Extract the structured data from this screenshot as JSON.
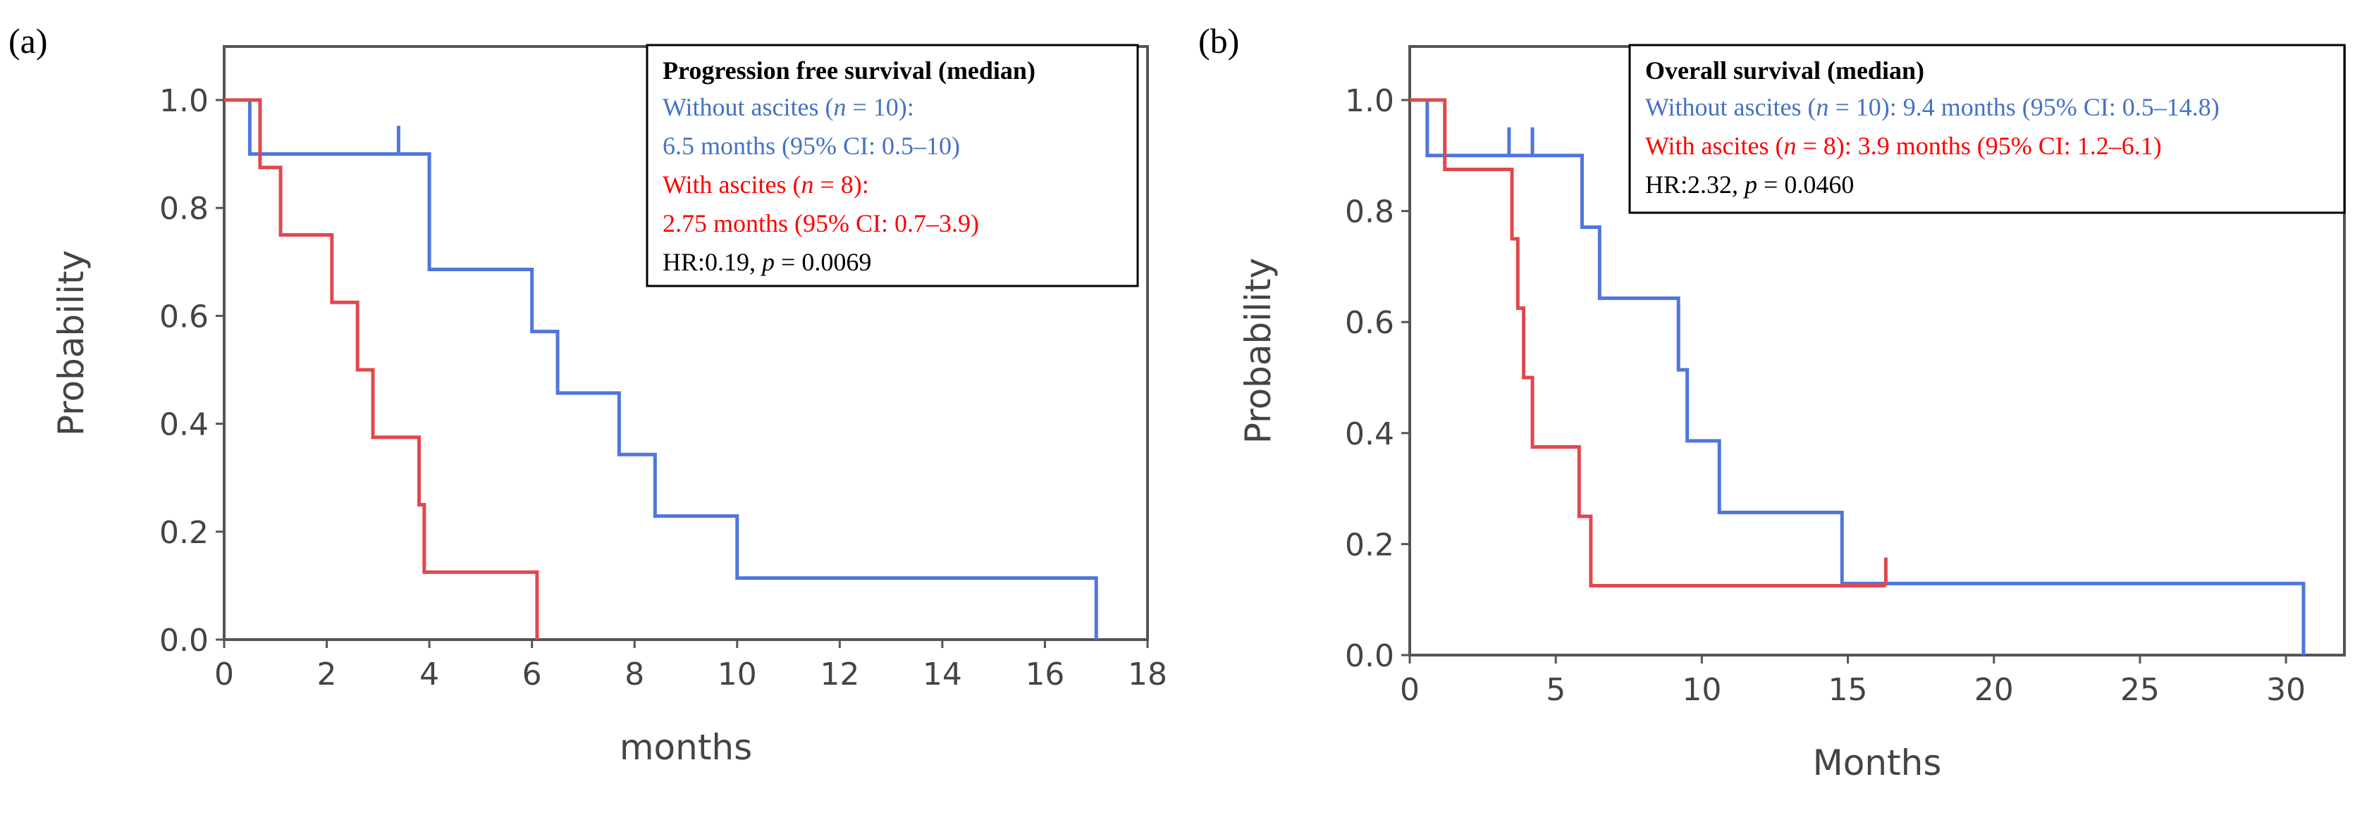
{
  "chart_data": [
    {
      "type": "line",
      "subtype": "kaplan-meier",
      "panel_label": "(a)",
      "title": "Progression free survival (median)",
      "xlabel": "months",
      "ylabel": "Probability",
      "xlim": [
        0,
        18
      ],
      "ylim": [
        0,
        1.08
      ],
      "xticks": [
        0,
        2,
        4,
        6,
        8,
        10,
        12,
        14,
        16,
        18
      ],
      "yticks": [
        "0.0",
        "0.2",
        "0.4",
        "0.6",
        "0.8",
        "1.0"
      ],
      "legend": {
        "position": "top-right",
        "title": "Progression free survival (median)",
        "lines": [
          {
            "parts": [
              {
                "t": "Without  ascites ("
              },
              {
                "t": "n",
                "i": true
              },
              {
                "t": " = 10):"
              }
            ],
            "color": "#4472C4"
          },
          {
            "parts": [
              {
                "t": "6.5 months  (95% CI: 0.5–10)"
              }
            ],
            "color": "#4472C4"
          },
          {
            "parts": [
              {
                "t": "With  ascites ("
              },
              {
                "t": "n",
                "i": true
              },
              {
                "t": " = 8):"
              }
            ],
            "color": "#FF0000"
          },
          {
            "parts": [
              {
                "t": "2.75 months  (95% CI: 0.7–3.9)"
              }
            ],
            "color": "#FF0000"
          },
          {
            "parts": [
              {
                "t": "HR:0.19,  "
              },
              {
                "t": "p",
                "i": true
              },
              {
                "t": " = 0.0069"
              }
            ],
            "color": "#000000"
          }
        ]
      },
      "series": [
        {
          "name": "Without ascites",
          "color": "#4F76DB",
          "steps": [
            [
              0,
              1.0
            ],
            [
              0.5,
              0.9
            ],
            [
              4.0,
              0.8
            ],
            [
              4.0,
              0.686
            ],
            [
              6.0,
              0.571
            ],
            [
              6.5,
              0.457
            ],
            [
              7.7,
              0.343
            ],
            [
              8.4,
              0.229
            ],
            [
              10.0,
              0.114
            ],
            [
              17.0,
              0.0
            ]
          ],
          "censored": [
            [
              3.4,
              0.9
            ]
          ]
        },
        {
          "name": "With ascites",
          "color": "#E0484E",
          "steps": [
            [
              0,
              1.0
            ],
            [
              0.7,
              0.875
            ],
            [
              1.1,
              0.75
            ],
            [
              2.1,
              0.625
            ],
            [
              2.6,
              0.5
            ],
            [
              2.9,
              0.375
            ],
            [
              3.8,
              0.25
            ],
            [
              3.9,
              0.125
            ],
            [
              6.1,
              0.0
            ]
          ],
          "censored": []
        }
      ]
    },
    {
      "type": "line",
      "subtype": "kaplan-meier",
      "panel_label": "(b)",
      "title": "Overall survival (median)",
      "xlabel": "Months",
      "ylabel": "Probability",
      "xlim": [
        0,
        32
      ],
      "ylim": [
        0,
        1.08
      ],
      "xticks": [
        0,
        5,
        10,
        15,
        20,
        25,
        30
      ],
      "yticks": [
        "0.0",
        "0.2",
        "0.4",
        "0.6",
        "0.8",
        "1.0"
      ],
      "legend": {
        "position": "top-right",
        "title": "Overall survival (median)",
        "lines": [
          {
            "parts": [
              {
                "t": "Without  ascites ("
              },
              {
                "t": "n",
                "i": true
              },
              {
                "t": " = 10): 9.4 months  (95% CI: 0.5–14.8)"
              }
            ],
            "color": "#4472C4"
          },
          {
            "parts": [
              {
                "t": "With  ascites ("
              },
              {
                "t": "n",
                "i": true
              },
              {
                "t": " = 8): 3.9 months  (95% CI: 1.2–6.1)"
              }
            ],
            "color": "#FF0000"
          },
          {
            "parts": [
              {
                "t": "HR:2.32,  "
              },
              {
                "t": "p",
                "i": true
              },
              {
                "t": " = 0.0460"
              }
            ],
            "color": "#000000"
          }
        ]
      },
      "series": [
        {
          "name": "Without ascites",
          "color": "#4F76DB",
          "steps": [
            [
              0,
              1.0
            ],
            [
              0.6,
              0.9
            ],
            [
              5.9,
              0.771
            ],
            [
              6.5,
              0.643
            ],
            [
              9.2,
              0.514
            ],
            [
              9.5,
              0.386
            ],
            [
              10.6,
              0.257
            ],
            [
              14.8,
              0.129
            ],
            [
              30.6,
              0.0
            ]
          ],
          "censored": [
            [
              3.4,
              0.9
            ],
            [
              4.2,
              0.9
            ]
          ]
        },
        {
          "name": "With ascites",
          "color": "#E0484E",
          "steps": [
            [
              0,
              1.0
            ],
            [
              1.2,
              0.875
            ],
            [
              3.5,
              0.75
            ],
            [
              3.7,
              0.625
            ],
            [
              3.9,
              0.5
            ],
            [
              4.2,
              0.375
            ],
            [
              5.8,
              0.25
            ],
            [
              6.2,
              0.125
            ]
          ],
          "end_x": 16.3,
          "censored": [
            [
              16.3,
              0.125
            ]
          ]
        }
      ]
    }
  ]
}
